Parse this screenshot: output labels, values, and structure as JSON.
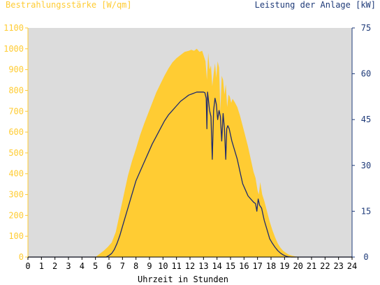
{
  "chart_data": {
    "type": "area",
    "xlabel": "Uhrzeit in Stunden",
    "ylabel_left": "Bestrahlungsstärke [W/qm]",
    "ylabel_right": "Leistung der Anlage [kW]",
    "xlim": [
      0,
      24
    ],
    "ylim_left": [
      0,
      1100
    ],
    "ylim_right": [
      0,
      75
    ],
    "x_ticks": [
      "0",
      "1",
      "2",
      "3",
      "4",
      "5",
      "6",
      "7",
      "8",
      "9",
      "10",
      "11",
      "12",
      "13",
      "14",
      "15",
      "16",
      "17",
      "18",
      "19",
      "20",
      "21",
      "22",
      "23",
      "24"
    ],
    "y_ticks_left": [
      "0",
      "100",
      "200",
      "300",
      "400",
      "500",
      "600",
      "700",
      "800",
      "900",
      "1000",
      "1100"
    ],
    "y_ticks_right": [
      "0",
      "15",
      "30",
      "45",
      "60",
      "75"
    ],
    "grid": false,
    "colors": {
      "plot_background": "#dcdcdc",
      "irradiance": "#ffcc33",
      "power": "#1e2a6e",
      "left_axis_text": "#ffcc33",
      "right_axis_text": "#1e3a78"
    },
    "series": [
      {
        "axis": "left",
        "style": "area",
        "x": [
          0,
          5,
          5.3,
          5.6,
          5.9,
          6.2,
          6.5,
          6.8,
          7.1,
          7.4,
          7.7,
          8,
          8.3,
          8.6,
          8.9,
          9.2,
          9.5,
          9.8,
          10.1,
          10.4,
          10.7,
          11,
          11.3,
          11.6,
          11.9,
          12.1,
          12.3,
          12.5,
          12.7,
          12.9,
          13.05,
          13.15,
          13.25,
          13.35,
          13.45,
          13.55,
          13.65,
          13.75,
          13.85,
          13.95,
          14.05,
          14.15,
          14.25,
          14.35,
          14.45,
          14.55,
          14.65,
          14.75,
          14.85,
          14.95,
          15.05,
          15.15,
          15.3,
          15.5,
          15.7,
          15.9,
          16.1,
          16.3,
          16.5,
          16.7,
          16.85,
          17.0,
          17.1,
          17.2,
          17.35,
          17.5,
          17.7,
          17.9,
          18.1,
          18.3,
          18.5,
          18.7,
          18.9,
          19.1,
          19.3,
          19.5,
          19.7,
          19.9,
          20.1,
          20.3,
          24
        ],
        "y": [
          0,
          0,
          15,
          30,
          48,
          70,
          120,
          210,
          300,
          390,
          460,
          520,
          585,
          640,
          690,
          740,
          790,
          830,
          870,
          905,
          935,
          955,
          970,
          985,
          990,
          995,
          990,
          1000,
          985,
          990,
          960,
          940,
          850,
          980,
          900,
          920,
          820,
          880,
          930,
          860,
          940,
          910,
          700,
          870,
          850,
          780,
          830,
          720,
          780,
          770,
          740,
          760,
          745,
          720,
          680,
          630,
          580,
          530,
          470,
          410,
          380,
          320,
          300,
          360,
          300,
          270,
          220,
          170,
          130,
          95,
          65,
          45,
          30,
          20,
          12,
          8,
          4,
          2,
          0,
          0,
          0
        ]
      },
      {
        "axis": "right",
        "style": "line",
        "x": [
          0,
          5.8,
          6.0,
          6.2,
          6.4,
          6.6,
          6.8,
          7.0,
          7.2,
          7.4,
          7.6,
          7.8,
          8.0,
          8.3,
          8.6,
          8.9,
          9.2,
          9.5,
          9.8,
          10.1,
          10.4,
          10.7,
          11,
          11.3,
          11.6,
          11.9,
          12.2,
          12.5,
          12.8,
          13.0,
          13.1,
          13.2,
          13.25,
          13.3,
          13.35,
          13.45,
          13.55,
          13.65,
          13.75,
          13.85,
          13.95,
          14.05,
          14.15,
          14.25,
          14.35,
          14.45,
          14.55,
          14.65,
          14.72,
          14.8,
          14.9,
          15.0,
          15.1,
          15.3,
          15.5,
          15.7,
          15.9,
          16.1,
          16.3,
          16.5,
          16.7,
          16.85,
          16.95,
          17.05,
          17.15,
          17.3,
          17.5,
          17.7,
          17.9,
          18.1,
          18.3,
          18.5,
          18.7,
          18.9,
          19.1,
          19.3,
          19.5,
          19.7,
          20.0,
          24
        ],
        "y": [
          0,
          0,
          0.5,
          1.2,
          2.5,
          4.5,
          7,
          10,
          13,
          16,
          19,
          22,
          25,
          28,
          31,
          34,
          37,
          39.5,
          42,
          44.5,
          46.5,
          48,
          49.5,
          51,
          52,
          53,
          53.5,
          54,
          54,
          54,
          53.8,
          52,
          42,
          54,
          52,
          48,
          46,
          32,
          48,
          52,
          50,
          45,
          48,
          46,
          38,
          47,
          42,
          32,
          42,
          43,
          42,
          40,
          38,
          35,
          32,
          28,
          24,
          22,
          20,
          19,
          18,
          17.5,
          15,
          19,
          17,
          16,
          12,
          9,
          6,
          4.5,
          3.2,
          2.1,
          1.3,
          0.7,
          0.3,
          0.1,
          0,
          0,
          0,
          0
        ]
      }
    ]
  }
}
